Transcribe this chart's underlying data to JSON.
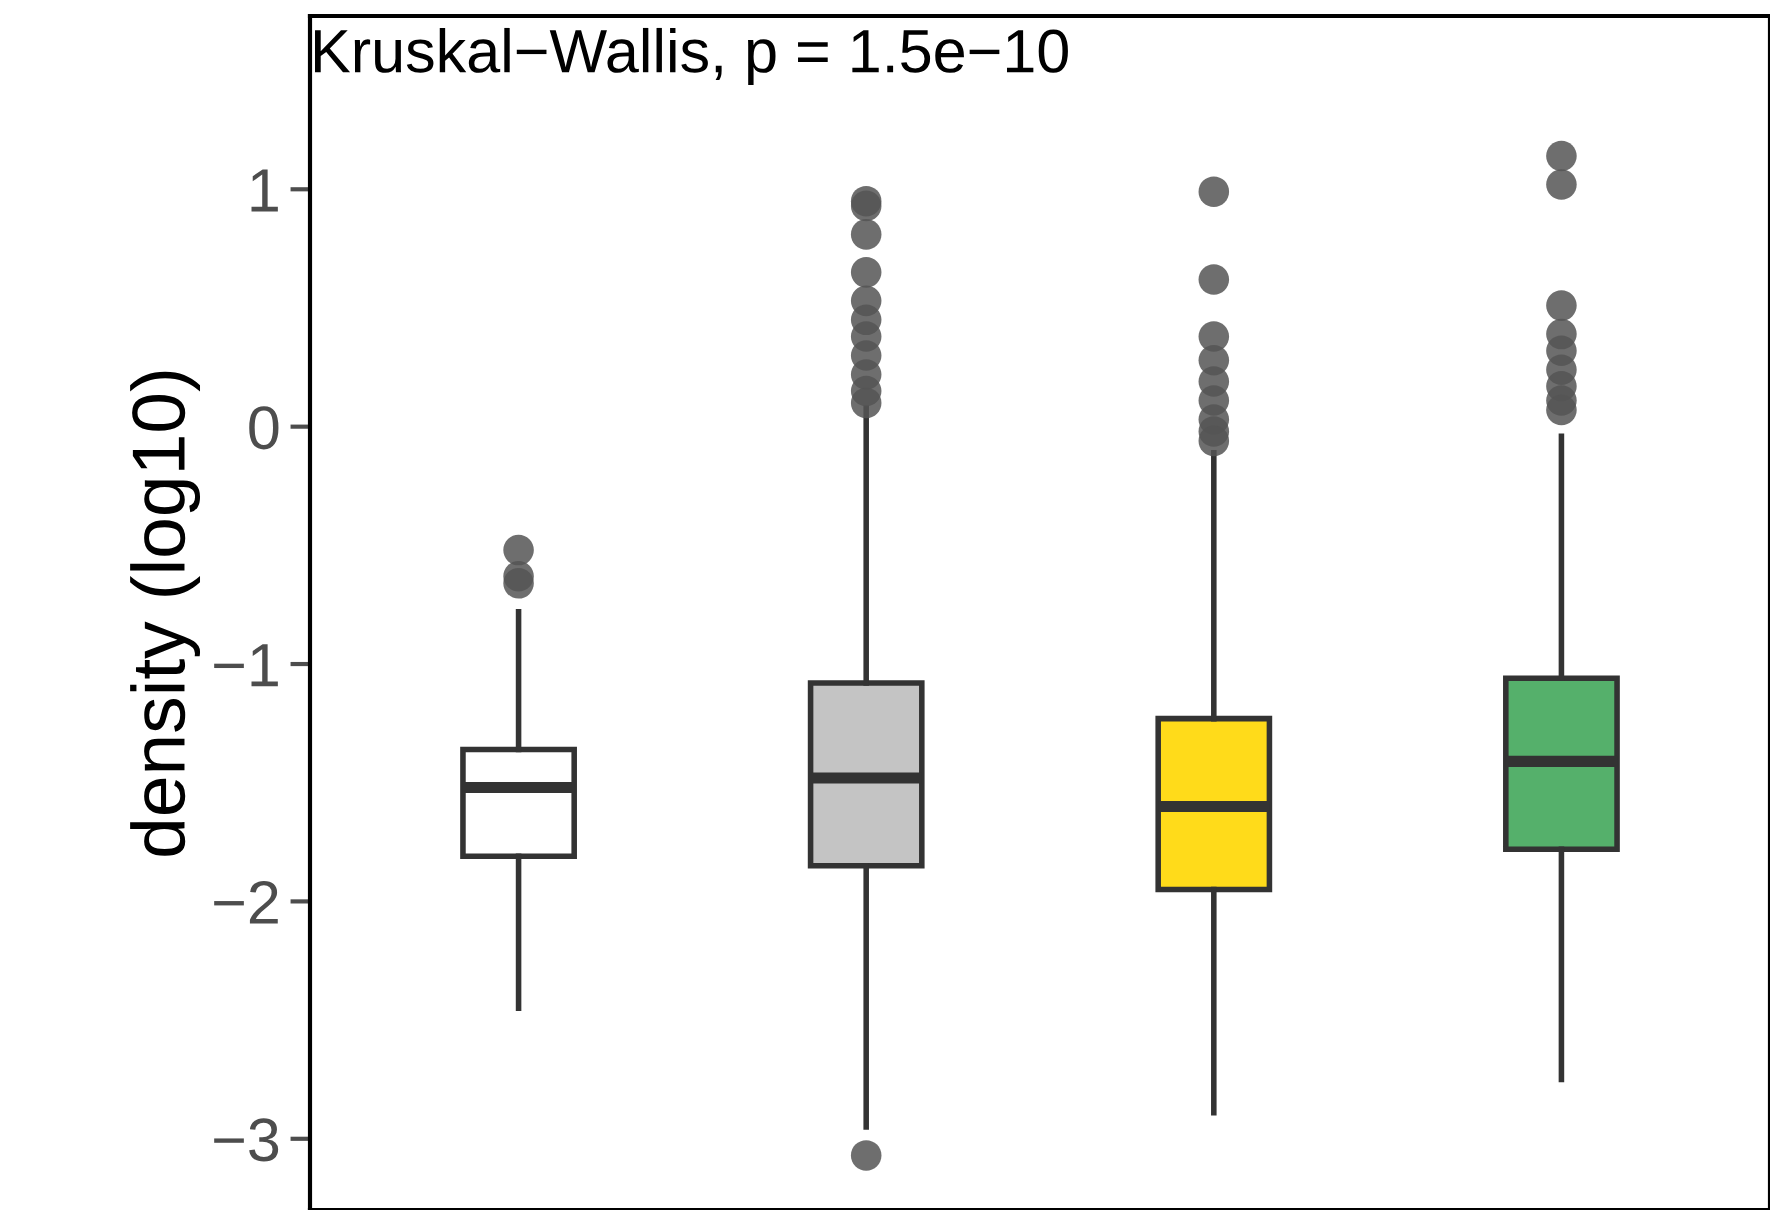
{
  "chart_data": {
    "type": "box",
    "ylabel": "density (log10)",
    "annotations": [
      "Kruskal−Wallis, p = 1.5e−10"
    ],
    "categories": [
      null,
      null,
      null,
      null
    ],
    "colors": [
      "#ffffff",
      "#c4c4c4",
      "#ffdb1a",
      "#55b06b"
    ],
    "boxes": [
      {
        "low": -2.45,
        "q1": -1.81,
        "median": -1.52,
        "q3": -1.36,
        "high": -0.78,
        "outliers": [
          -0.52,
          -0.63,
          -0.66
        ]
      },
      {
        "low": -2.95,
        "q1": -1.85,
        "median": -1.48,
        "q3": -1.08,
        "high": 0.08,
        "outliers": [
          -3.07,
          0.95,
          0.93,
          0.81,
          0.65,
          0.53,
          0.45,
          0.38,
          0.3,
          0.22,
          0.15,
          0.1
        ]
      },
      {
        "low": -2.89,
        "q1": -1.95,
        "median": -1.6,
        "q3": -1.23,
        "high": -0.11,
        "outliers": [
          0.99,
          0.62,
          0.38,
          0.28,
          0.19,
          0.11,
          0.03,
          -0.02,
          -0.06
        ]
      },
      {
        "low": -2.75,
        "q1": -1.78,
        "median": -1.41,
        "q3": -1.06,
        "high": -0.04,
        "outliers": [
          1.14,
          1.02,
          0.51,
          0.39,
          0.32,
          0.24,
          0.17,
          0.11,
          0.07
        ]
      }
    ],
    "ylim": [
      -3.3,
      1.73
    ],
    "yticks": [
      {
        "value": -3,
        "label": "−3"
      },
      {
        "value": -2,
        "label": "−2"
      },
      {
        "value": -1,
        "label": "−1"
      },
      0,
      1
    ],
    "grid": false,
    "legend": false
  }
}
